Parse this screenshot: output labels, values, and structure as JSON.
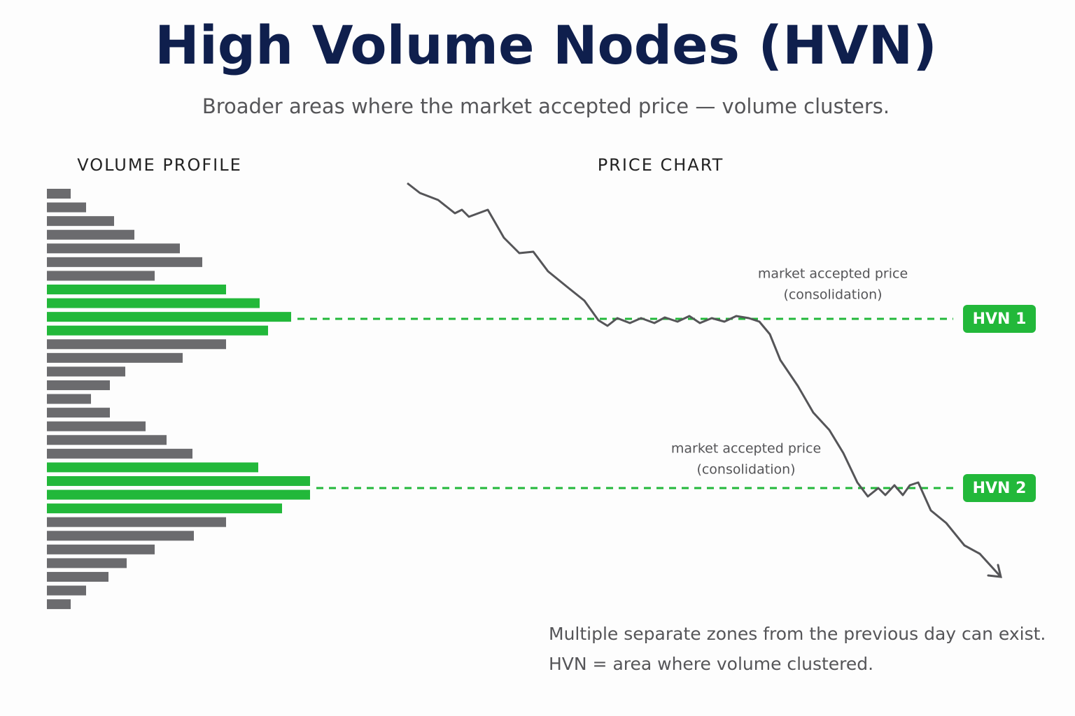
{
  "title": "High Volume Nodes (HVN)",
  "subtitle": "Broader areas where the market accepted price — volume clusters.",
  "chart_data": [
    {
      "type": "hbar",
      "title": "VOLUME PROFILE",
      "categories": [
        null,
        null,
        null,
        null,
        null,
        null,
        null,
        null,
        null,
        null,
        null,
        null,
        null,
        null,
        null,
        null,
        null,
        null,
        null,
        null,
        null,
        null,
        null,
        null,
        null,
        null,
        null,
        null,
        null,
        null,
        null
      ],
      "values": [
        34,
        56,
        96,
        125,
        190,
        222,
        154,
        256,
        304,
        349,
        316,
        256,
        194,
        112,
        90,
        63,
        90,
        141,
        171,
        208,
        302,
        376,
        376,
        336,
        256,
        210,
        154,
        114,
        88,
        56,
        34
      ],
      "colors": [
        "#6b6b6e",
        "#6b6b6e",
        "#6b6b6e",
        "#6b6b6e",
        "#6b6b6e",
        "#6b6b6e",
        "#6b6b6e",
        "#22b83a",
        "#22b83a",
        "#22b83a",
        "#22b83a",
        "#6b6b6e",
        "#6b6b6e",
        "#6b6b6e",
        "#6b6b6e",
        "#6b6b6e",
        "#6b6b6e",
        "#6b6b6e",
        "#6b6b6e",
        "#6b6b6e",
        "#22b83a",
        "#22b83a",
        "#22b83a",
        "#22b83a",
        "#6b6b6e",
        "#6b6b6e",
        "#6b6b6e",
        "#6b6b6e",
        "#6b6b6e",
        "#6b6b6e",
        "#6b6b6e"
      ]
    },
    {
      "type": "line",
      "title": "PRICE CHART",
      "color": "#555558",
      "x": [
        0,
        18,
        44,
        68,
        78,
        88,
        115,
        138,
        160,
        180,
        201,
        228,
        253,
        273,
        286,
        300,
        318,
        334,
        353,
        368,
        386,
        403,
        418,
        435,
        453,
        470,
        488,
        503,
        518,
        533,
        558,
        580,
        603,
        623,
        643,
        658,
        673,
        683,
        696,
        708,
        718,
        730,
        748,
        770,
        796,
        818,
        848
      ],
      "values": [
        762,
        748,
        738,
        719,
        724,
        714,
        724,
        684,
        662,
        664,
        636,
        614,
        594,
        566,
        558,
        569,
        562,
        569,
        562,
        570,
        564,
        572,
        562,
        569,
        564,
        572,
        569,
        564,
        546,
        509,
        472,
        434,
        409,
        376,
        334,
        314,
        326,
        316,
        330,
        316,
        330,
        334,
        294,
        276,
        244,
        232,
        199
      ],
      "xlim": [
        0,
        848
      ],
      "ylim": [
        199,
        762
      ],
      "levels": [
        {
          "label": "HVN 1",
          "value": 568,
          "color": "#22b83a",
          "annotation": [
            "market accepted price",
            "(consolidation)"
          ]
        },
        {
          "label": "HVN 2",
          "value": 326,
          "color": "#22b83a",
          "annotation": [
            "market accepted price",
            "(consolidation)"
          ]
        }
      ]
    }
  ],
  "footer": [
    "Multiple separate zones from the previous day can exist.",
    "HVN = area where volume clustered."
  ]
}
